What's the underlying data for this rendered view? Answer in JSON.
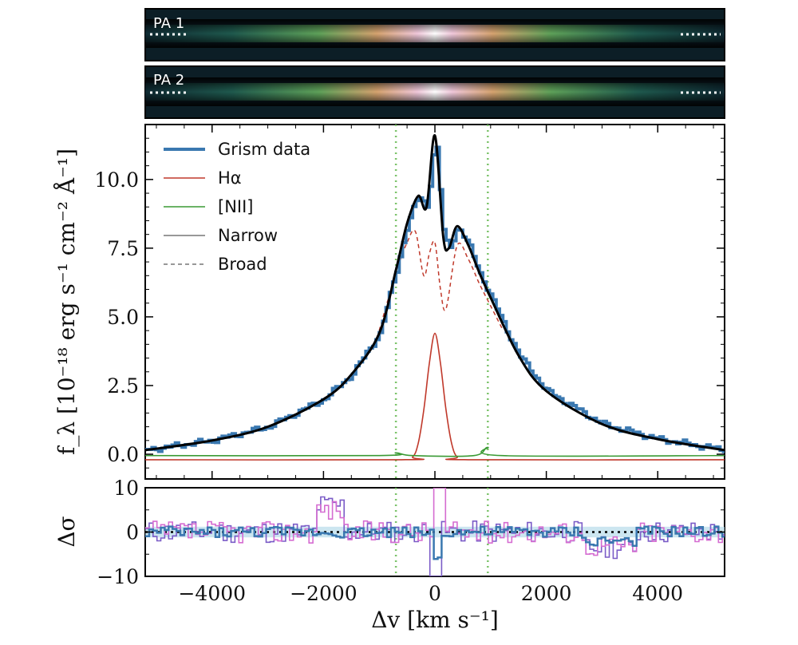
{
  "chart_data": [
    {
      "type": "image",
      "panel": "spectrum-2d",
      "labels": [
        "PA 1",
        "PA 2"
      ]
    },
    {
      "type": "line",
      "panel": "main",
      "xlabel": "Δv [km s⁻¹]",
      "ylabel": "f_λ [10⁻¹⁸ erg s⁻¹ cm⁻² Å⁻¹]",
      "xlim": [
        -5200,
        5200
      ],
      "ylim": [
        -0.9,
        12.0
      ],
      "x_ticks": [
        "−4000",
        "−2000",
        "0",
        "2000",
        "4000"
      ],
      "y_ticks": [
        "0.0",
        "2.5",
        "5.0",
        "7.5",
        "10.0"
      ],
      "vlines": [
        -700,
        950
      ],
      "legend_position": "top-left",
      "legend": [
        {
          "label": "Grism data",
          "color": "#3a78b0",
          "style": "solid-thick"
        },
        {
          "label": "Hα",
          "color": "#c0392b",
          "style": "solid"
        },
        {
          "label": "[NII]",
          "color": "#3a9a34",
          "style": "solid"
        },
        {
          "label": "Narrow",
          "color": "#777777",
          "style": "solid"
        },
        {
          "label": "Broad",
          "color": "#777777",
          "style": "dashed"
        }
      ],
      "series": [
        {
          "name": "Grism data",
          "color": "#3a78b0",
          "x": [
            -5200,
            -4000,
            -3000,
            -2000,
            -1500,
            -1000,
            -700,
            -500,
            -300,
            -150,
            0,
            150,
            250,
            400,
            600,
            800,
            1000,
            1500,
            2000,
            3000,
            4000,
            5200
          ],
          "y": [
            0.15,
            0.5,
            1.0,
            2.0,
            2.9,
            4.4,
            6.7,
            8.4,
            9.4,
            9.0,
            11.6,
            7.9,
            7.5,
            8.3,
            7.6,
            6.6,
            5.7,
            3.6,
            2.3,
            1.1,
            0.55,
            0.15
          ]
        },
        {
          "name": "Hα",
          "color": "#c0392b",
          "x": [
            -600,
            -400,
            -300,
            -200,
            -100,
            0,
            100,
            200,
            300,
            400,
            600
          ],
          "y": [
            -0.2,
            -0.1,
            0.4,
            1.6,
            3.3,
            4.4,
            3.3,
            1.6,
            0.4,
            -0.1,
            -0.2
          ]
        },
        {
          "name": "[NII]",
          "color": "#3a9a34",
          "x": [
            -5200,
            -1000,
            -700,
            -400,
            700,
            950,
            1200,
            5200
          ],
          "y": [
            -0.05,
            -0.05,
            0.05,
            -0.05,
            -0.05,
            0.25,
            -0.05,
            -0.05
          ]
        },
        {
          "name": "Broad",
          "color": "#c0392b",
          "x": [
            -1000,
            -700,
            -500,
            -350,
            -200,
            -100,
            0,
            100,
            200,
            400,
            600,
            800,
            1000,
            1200
          ],
          "y": [
            4.5,
            6.6,
            7.7,
            8.1,
            6.5,
            7.3,
            7.7,
            6.0,
            5.3,
            7.6,
            7.1,
            6.2,
            5.4,
            4.6
          ]
        }
      ]
    },
    {
      "type": "line",
      "panel": "residual",
      "ylabel": "Δσ",
      "ylim": [
        -10,
        10
      ],
      "y_ticks": [
        "−10",
        "0",
        "10"
      ],
      "reference_line": 0
    }
  ]
}
